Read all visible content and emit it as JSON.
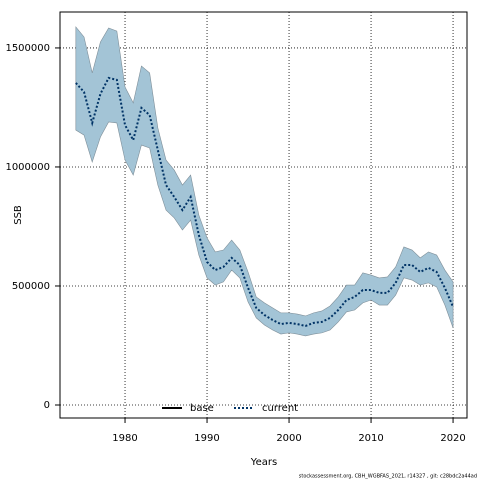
{
  "chart_data": {
    "type": "line",
    "xlabel": "Years",
    "ylabel": "SSB",
    "footer": "stockassessment.org, CBH_WGBFAS_2021, r14327 , git: c28bdc2a44ad",
    "x": [
      1974,
      1975,
      1976,
      1977,
      1978,
      1979,
      1980,
      1981,
      1982,
      1983,
      1984,
      1985,
      1986,
      1987,
      1988,
      1989,
      1990,
      1991,
      1992,
      1993,
      1994,
      1995,
      1996,
      1997,
      1998,
      1999,
      2000,
      2001,
      2002,
      2003,
      2004,
      2005,
      2006,
      2007,
      2008,
      2009,
      2010,
      2011,
      2012,
      2013,
      2014,
      2015,
      2016,
      2017,
      2018,
      2019,
      2020
    ],
    "series": [
      {
        "name": "current",
        "color": "#003366",
        "dash": "dotted",
        "band_color": "#a3c4d6",
        "values": [
          1353000,
          1315000,
          1185000,
          1307000,
          1374000,
          1366000,
          1176000,
          1113000,
          1248000,
          1218000,
          1071000,
          924000,
          874000,
          819000,
          874000,
          714000,
          601000,
          567000,
          580000,
          618000,
          588000,
          492000,
          408000,
          378000,
          357000,
          340000,
          345000,
          340000,
          332000,
          345000,
          349000,
          366000,
          399000,
          441000,
          454000,
          483000,
          483000,
          471000,
          471000,
          513000,
          588000,
          588000,
          559000,
          576000,
          559000,
          492000,
          412000
        ],
        "upper": [
          1588000,
          1546000,
          1395000,
          1525000,
          1584000,
          1571000,
          1336000,
          1269000,
          1424000,
          1395000,
          1164000,
          1029000,
          987000,
          924000,
          966000,
          798000,
          702000,
          643000,
          651000,
          693000,
          651000,
          559000,
          454000,
          429000,
          408000,
          387000,
          387000,
          382000,
          374000,
          387000,
          395000,
          416000,
          454000,
          504000,
          504000,
          555000,
          546000,
          534000,
          538000,
          580000,
          664000,
          651000,
          618000,
          643000,
          630000,
          567000,
          517000
        ],
        "lower": [
          1155000,
          1134000,
          1021000,
          1126000,
          1189000,
          1185000,
          1029000,
          966000,
          1092000,
          1080000,
          924000,
          819000,
          786000,
          735000,
          777000,
          630000,
          534000,
          504000,
          517000,
          567000,
          534000,
          433000,
          366000,
          336000,
          315000,
          298000,
          303000,
          298000,
          290000,
          298000,
          303000,
          315000,
          349000,
          391000,
          399000,
          429000,
          441000,
          420000,
          420000,
          462000,
          534000,
          525000,
          504000,
          513000,
          496000,
          420000,
          324000
        ]
      }
    ],
    "legend": [
      {
        "name": "base",
        "color": "#000000",
        "dash": "solid"
      },
      {
        "name": "current",
        "color": "#003366",
        "dash": "dotted"
      }
    ],
    "legend_position": "bottom",
    "xlim": [
      1972.07,
      2021.7
    ],
    "xticks": [
      1980,
      1990,
      2000,
      2010,
      2020
    ],
    "ylim": [
      -54600,
      1651000
    ],
    "yticks": [
      0,
      500000,
      1000000,
      1500000
    ],
    "grid": true
  }
}
